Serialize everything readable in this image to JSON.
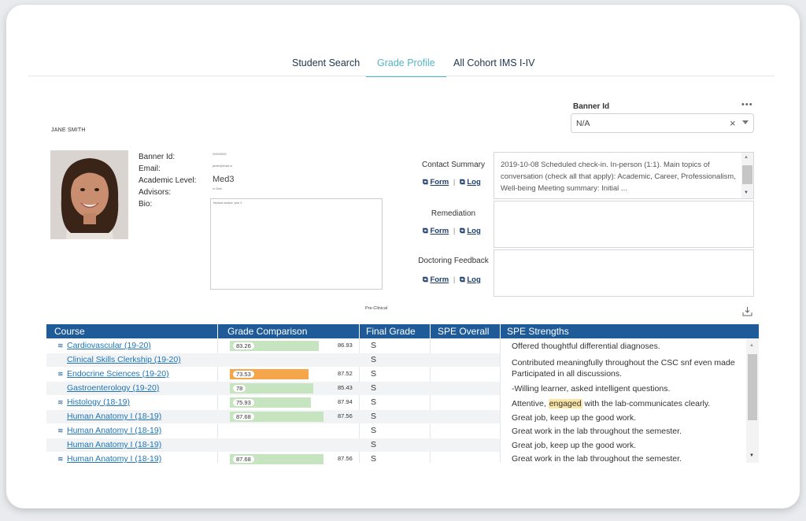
{
  "tabs": [
    {
      "label": "Student Search"
    },
    {
      "label": "Grade Profile"
    },
    {
      "label": "All Cohort IMS I-IV"
    }
  ],
  "profile": {
    "name": "JANE SMITH",
    "labels": {
      "banner_id": "Banner Id:",
      "email": "Email:",
      "academic_level": "Academic Level:",
      "advisors": "Advisors:",
      "bio": "Bio:"
    },
    "banner_id_value": "000000000",
    "email_value": "jsmith@email.ut",
    "academic_level_value": "Med3",
    "academic_level_sub": "In Clerk",
    "bio_placeholder": "Medical student, year 3"
  },
  "banner": {
    "label": "Banner Id",
    "value": "N/A"
  },
  "contact": {
    "label": "Contact Summary",
    "text": "2019-10-08 Scheduled check-in. In-person (1:1). Main topics of conversation (check all that apply): Academic, Career, Professionalism, Well-being Meeting summary: Initial ..."
  },
  "remediation": {
    "label": "Remediation"
  },
  "doctoring": {
    "label": "Doctoring Feedback"
  },
  "links": {
    "form": "Form",
    "sep": "|",
    "log": "Log"
  },
  "preclinical_label": "Pre-Clinical",
  "table": {
    "headers": [
      "Course",
      "Grade Comparison",
      "Final Grade",
      "SPE Overall",
      "SPE Strengths"
    ],
    "rows": [
      {
        "course": "Cardiovascular (19-20)",
        "grouped": true,
        "student": "83.26",
        "cohort": "86.93",
        "grade": "S",
        "bar_color": "#c7e4c0",
        "fill": 0.8326
      },
      {
        "course": "Clinical Skills Clerkship (19-20)",
        "grouped": false,
        "student": "",
        "cohort": "",
        "grade": "S",
        "bar_color": "",
        "fill": 0
      },
      {
        "course": "Endocrine Sciences (19-20)",
        "grouped": true,
        "student": "73.53",
        "cohort": "87.52",
        "grade": "S",
        "bar_color": "#f5a54a",
        "fill": 0.7353
      },
      {
        "course": "Gastroenterology (19-20)",
        "grouped": false,
        "student": "78",
        "cohort": "85.43",
        "grade": "S",
        "bar_color": "#c7e4c0",
        "fill": 0.78
      },
      {
        "course": "Histology (18-19)",
        "grouped": true,
        "student": "75.93",
        "cohort": "87.94",
        "grade": "S",
        "bar_color": "#c7e4c0",
        "fill": 0.7593
      },
      {
        "course": "Human Anatomy I (18-19)",
        "grouped": false,
        "student": "87.68",
        "cohort": "87.56",
        "grade": "S",
        "bar_color": "#c7e4c0",
        "fill": 0.8768
      },
      {
        "course": "Human Anatomy I (18-19)",
        "grouped": true,
        "student": "",
        "cohort": "",
        "grade": "S",
        "bar_color": "",
        "fill": 0
      },
      {
        "course": "Human Anatomy I (18-19)",
        "grouped": false,
        "student": "",
        "cohort": "",
        "grade": "S",
        "bar_color": "",
        "fill": 0
      },
      {
        "course": "Human Anatomy I (18-19)",
        "grouped": true,
        "student": "87.68",
        "cohort": "87.56",
        "grade": "S",
        "bar_color": "#c7e4c0",
        "fill": 0.8768
      }
    ],
    "strengths": [
      "Offered thoughtful differential diagnoses.",
      "Contributed meaningfully throughout the CSC snf even made",
      "Participated in all discussions.",
      "-Willing learner, asked intelligent questions.",
      "Attentive, ",
      "engaged",
      " with the lab-communicates clearly.",
      "Great job, keep up the good work.",
      "Great work in the lab throughout the semester.",
      "Great job, keep up the good work.",
      "Great work in the lab throughout the semester."
    ]
  },
  "colors": {
    "accent": "#55b6c3",
    "header": "#1f5b99",
    "link": "#1f74b5",
    "bar_green": "#c7e4c0",
    "bar_orange": "#f5a54a"
  }
}
